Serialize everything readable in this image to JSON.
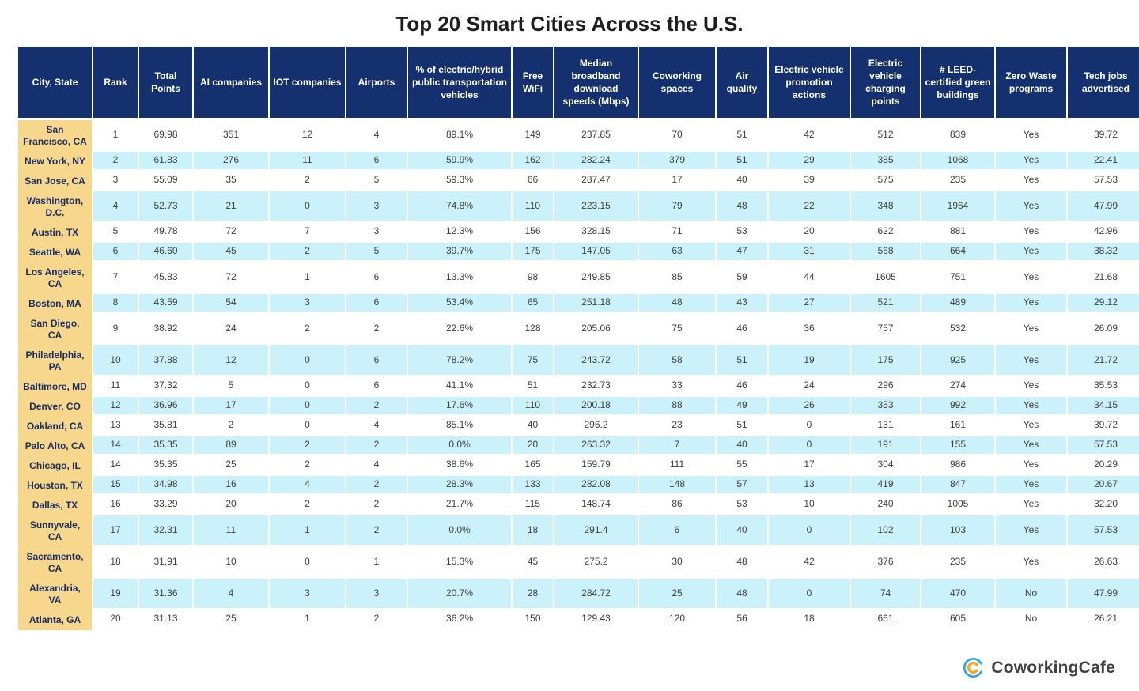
{
  "title": "Top 20 Smart Cities Across the U.S.",
  "footer": {
    "brand": "CoworkingCafe"
  },
  "colors": {
    "header_navy": "#14306e",
    "city_column_gold": "#f6d78c",
    "row_cyan": "#cbf2fa",
    "row_white": "#ffffff",
    "city_text_navy": "#1a2f66",
    "body_text": "#3f3f3f",
    "logo_blue": "#2ea8e0",
    "logo_orange": "#f4a723"
  },
  "chart_data": {
    "type": "table",
    "title": "Top 20 Smart Cities Across the U.S.",
    "columns": [
      {
        "key": "city",
        "label": "City, State"
      },
      {
        "key": "rank",
        "label": "Rank"
      },
      {
        "key": "points",
        "label": "Total Points"
      },
      {
        "key": "ai",
        "label": "AI companies"
      },
      {
        "key": "iot",
        "label": "IOT companies"
      },
      {
        "key": "airports",
        "label": "Airports"
      },
      {
        "key": "electric",
        "label": "% of electric/hybrid public transportation vehicles"
      },
      {
        "key": "wifi",
        "label": "Free WiFi"
      },
      {
        "key": "broadband",
        "label": "Median broadband download speeds (Mbps)"
      },
      {
        "key": "coworking",
        "label": "Coworking spaces"
      },
      {
        "key": "air",
        "label": "Air quality"
      },
      {
        "key": "ev_actions",
        "label": "Electric vehicle promotion actions"
      },
      {
        "key": "ev_charging",
        "label": "Electric vehicle charging points"
      },
      {
        "key": "leed",
        "label": "# LEED-certified green buildings"
      },
      {
        "key": "zero_waste",
        "label": "Zero Waste programs"
      },
      {
        "key": "tech_jobs",
        "label": "Tech jobs advertised"
      }
    ],
    "rows": [
      {
        "city": "San Francisco, CA",
        "rank": "1",
        "points": "69.98",
        "ai": "351",
        "iot": "12",
        "airports": "4",
        "electric": "89.1%",
        "wifi": "149",
        "broadband": "237.85",
        "coworking": "70",
        "air": "51",
        "ev_actions": "42",
        "ev_charging": "512",
        "leed": "839",
        "zero_waste": "Yes",
        "tech_jobs": "39.72"
      },
      {
        "city": "New York, NY",
        "rank": "2",
        "points": "61.83",
        "ai": "276",
        "iot": "11",
        "airports": "6",
        "electric": "59.9%",
        "wifi": "162",
        "broadband": "282.24",
        "coworking": "379",
        "air": "51",
        "ev_actions": "29",
        "ev_charging": "385",
        "leed": "1068",
        "zero_waste": "Yes",
        "tech_jobs": "22.41"
      },
      {
        "city": "San Jose, CA",
        "rank": "3",
        "points": "55.09",
        "ai": "35",
        "iot": "2",
        "airports": "5",
        "electric": "59.3%",
        "wifi": "66",
        "broadband": "287.47",
        "coworking": "17",
        "air": "40",
        "ev_actions": "39",
        "ev_charging": "575",
        "leed": "235",
        "zero_waste": "Yes",
        "tech_jobs": "57.53"
      },
      {
        "city": "Washington, D.C.",
        "rank": "4",
        "points": "52.73",
        "ai": "21",
        "iot": "0",
        "airports": "3",
        "electric": "74.8%",
        "wifi": "110",
        "broadband": "223.15",
        "coworking": "79",
        "air": "48",
        "ev_actions": "22",
        "ev_charging": "348",
        "leed": "1964",
        "zero_waste": "Yes",
        "tech_jobs": "47.99"
      },
      {
        "city": "Austin, TX",
        "rank": "5",
        "points": "49.78",
        "ai": "72",
        "iot": "7",
        "airports": "3",
        "electric": "12.3%",
        "wifi": "156",
        "broadband": "328.15",
        "coworking": "71",
        "air": "53",
        "ev_actions": "20",
        "ev_charging": "622",
        "leed": "881",
        "zero_waste": "Yes",
        "tech_jobs": "42.96"
      },
      {
        "city": "Seattle, WA",
        "rank": "6",
        "points": "46.60",
        "ai": "45",
        "iot": "2",
        "airports": "5",
        "electric": "39.7%",
        "wifi": "175",
        "broadband": "147.05",
        "coworking": "63",
        "air": "47",
        "ev_actions": "31",
        "ev_charging": "568",
        "leed": "664",
        "zero_waste": "Yes",
        "tech_jobs": "38.32"
      },
      {
        "city": "Los Angeles, CA",
        "rank": "7",
        "points": "45.83",
        "ai": "72",
        "iot": "1",
        "airports": "6",
        "electric": "13.3%",
        "wifi": "98",
        "broadband": "249.85",
        "coworking": "85",
        "air": "59",
        "ev_actions": "44",
        "ev_charging": "1605",
        "leed": "751",
        "zero_waste": "Yes",
        "tech_jobs": "21.68"
      },
      {
        "city": "Boston, MA",
        "rank": "8",
        "points": "43.59",
        "ai": "54",
        "iot": "3",
        "airports": "6",
        "electric": "53.4%",
        "wifi": "65",
        "broadband": "251.18",
        "coworking": "48",
        "air": "43",
        "ev_actions": "27",
        "ev_charging": "521",
        "leed": "489",
        "zero_waste": "Yes",
        "tech_jobs": "29.12"
      },
      {
        "city": "San Diego, CA",
        "rank": "9",
        "points": "38.92",
        "ai": "24",
        "iot": "2",
        "airports": "2",
        "electric": "22.6%",
        "wifi": "128",
        "broadband": "205.06",
        "coworking": "75",
        "air": "46",
        "ev_actions": "36",
        "ev_charging": "757",
        "leed": "532",
        "zero_waste": "Yes",
        "tech_jobs": "26.09"
      },
      {
        "city": "Philadelphia, PA",
        "rank": "10",
        "points": "37.88",
        "ai": "12",
        "iot": "0",
        "airports": "6",
        "electric": "78.2%",
        "wifi": "75",
        "broadband": "243.72",
        "coworking": "58",
        "air": "51",
        "ev_actions": "19",
        "ev_charging": "175",
        "leed": "925",
        "zero_waste": "Yes",
        "tech_jobs": "21.72"
      },
      {
        "city": "Baltimore, MD",
        "rank": "11",
        "points": "37.32",
        "ai": "5",
        "iot": "0",
        "airports": "6",
        "electric": "41.1%",
        "wifi": "51",
        "broadband": "232.73",
        "coworking": "33",
        "air": "46",
        "ev_actions": "24",
        "ev_charging": "296",
        "leed": "274",
        "zero_waste": "Yes",
        "tech_jobs": "35.53"
      },
      {
        "city": "Denver, CO",
        "rank": "12",
        "points": "36.96",
        "ai": "17",
        "iot": "0",
        "airports": "2",
        "electric": "17.6%",
        "wifi": "110",
        "broadband": "200.18",
        "coworking": "88",
        "air": "49",
        "ev_actions": "26",
        "ev_charging": "353",
        "leed": "992",
        "zero_waste": "Yes",
        "tech_jobs": "34.15"
      },
      {
        "city": "Oakland, CA",
        "rank": "13",
        "points": "35.81",
        "ai": "2",
        "iot": "0",
        "airports": "4",
        "electric": "85.1%",
        "wifi": "40",
        "broadband": "296.2",
        "coworking": "23",
        "air": "51",
        "ev_actions": "0",
        "ev_charging": "131",
        "leed": "161",
        "zero_waste": "Yes",
        "tech_jobs": "39.72"
      },
      {
        "city": "Palo Alto, CA",
        "rank": "14",
        "points": "35.35",
        "ai": "89",
        "iot": "2",
        "airports": "2",
        "electric": "0.0%",
        "wifi": "20",
        "broadband": "263.32",
        "coworking": "7",
        "air": "40",
        "ev_actions": "0",
        "ev_charging": "191",
        "leed": "155",
        "zero_waste": "Yes",
        "tech_jobs": "57.53"
      },
      {
        "city": "Chicago, IL",
        "rank": "14",
        "points": "35.35",
        "ai": "25",
        "iot": "2",
        "airports": "4",
        "electric": "38.6%",
        "wifi": "165",
        "broadband": "159.79",
        "coworking": "111",
        "air": "55",
        "ev_actions": "17",
        "ev_charging": "304",
        "leed": "986",
        "zero_waste": "Yes",
        "tech_jobs": "20.29"
      },
      {
        "city": "Houston, TX",
        "rank": "15",
        "points": "34.98",
        "ai": "16",
        "iot": "4",
        "airports": "2",
        "electric": "28.3%",
        "wifi": "133",
        "broadband": "282.08",
        "coworking": "148",
        "air": "57",
        "ev_actions": "13",
        "ev_charging": "419",
        "leed": "847",
        "zero_waste": "Yes",
        "tech_jobs": "20.67"
      },
      {
        "city": "Dallas, TX",
        "rank": "16",
        "points": "33.29",
        "ai": "20",
        "iot": "2",
        "airports": "2",
        "electric": "21.7%",
        "wifi": "115",
        "broadband": "148.74",
        "coworking": "86",
        "air": "53",
        "ev_actions": "10",
        "ev_charging": "240",
        "leed": "1005",
        "zero_waste": "Yes",
        "tech_jobs": "32.20"
      },
      {
        "city": "Sunnyvale, CA",
        "rank": "17",
        "points": "32.31",
        "ai": "11",
        "iot": "1",
        "airports": "2",
        "electric": "0.0%",
        "wifi": "18",
        "broadband": "291.4",
        "coworking": "6",
        "air": "40",
        "ev_actions": "0",
        "ev_charging": "102",
        "leed": "103",
        "zero_waste": "Yes",
        "tech_jobs": "57.53"
      },
      {
        "city": "Sacramento, CA",
        "rank": "18",
        "points": "31.91",
        "ai": "10",
        "iot": "0",
        "airports": "1",
        "electric": "15.3%",
        "wifi": "45",
        "broadband": "275.2",
        "coworking": "30",
        "air": "48",
        "ev_actions": "42",
        "ev_charging": "376",
        "leed": "235",
        "zero_waste": "Yes",
        "tech_jobs": "26.63"
      },
      {
        "city": "Alexandria, VA",
        "rank": "19",
        "points": "31.36",
        "ai": "4",
        "iot": "3",
        "airports": "3",
        "electric": "20.7%",
        "wifi": "28",
        "broadband": "284.72",
        "coworking": "25",
        "air": "48",
        "ev_actions": "0",
        "ev_charging": "74",
        "leed": "470",
        "zero_waste": "No",
        "tech_jobs": "47.99"
      },
      {
        "city": "Atlanta, GA",
        "rank": "20",
        "points": "31.13",
        "ai": "25",
        "iot": "1",
        "airports": "2",
        "electric": "36.2%",
        "wifi": "150",
        "broadband": "129.43",
        "coworking": "120",
        "air": "56",
        "ev_actions": "18",
        "ev_charging": "661",
        "leed": "605",
        "zero_waste": "No",
        "tech_jobs": "26.21"
      }
    ]
  }
}
